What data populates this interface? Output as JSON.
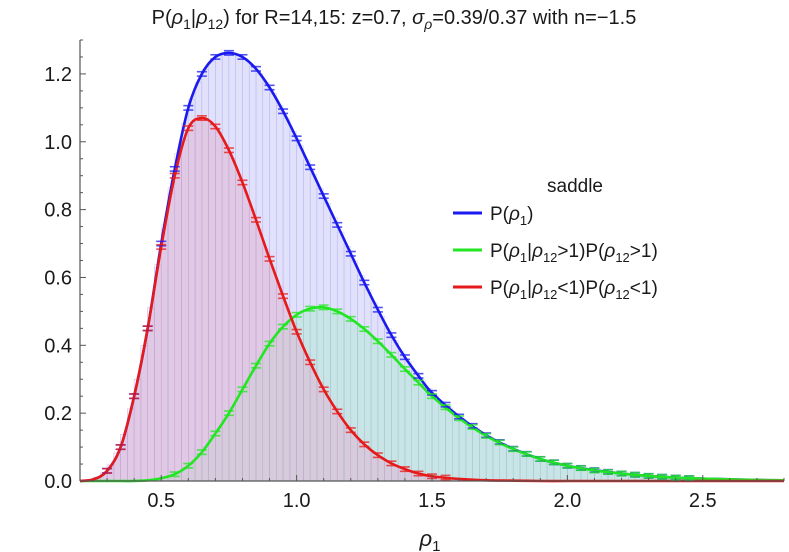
{
  "chart_data": {
    "type": "line",
    "title": "P(ρ1|ρ12) for R=14,15: z=0.7, σρ=0.39/0.37 with n=−1.5",
    "title_parts": {
      "p1": "P(",
      "rho": "ρ",
      "sub1": "1",
      "bar": "|",
      "sub12": "12",
      "rest": ") for R=14,15: z=0.7, ",
      "sigma": "σ",
      "sigma_sub": "ρ",
      "tail": "=0.39/0.37 with n=−1.5"
    },
    "xlabel": "ρ",
    "xlabel_sub": "1",
    "ylabel": "",
    "xlim": [
      0.2,
      2.8
    ],
    "ylim": [
      0.0,
      1.3
    ],
    "x_ticks": [
      0.5,
      1.0,
      1.5,
      2.0,
      2.5
    ],
    "x_tick_labels": [
      "0.5",
      "1.0",
      "1.5",
      "2.0",
      "2.5"
    ],
    "y_ticks": [
      0.0,
      0.2,
      0.4,
      0.6,
      0.8,
      1.0,
      1.2
    ],
    "y_tick_labels": [
      "0.0",
      "0.2",
      "0.4",
      "0.6",
      "0.8",
      "1.0",
      "1.2"
    ],
    "grid": false,
    "legend_title": "saddle",
    "legend_position": "center-right",
    "x": [
      0.2,
      0.25,
      0.3,
      0.35,
      0.4,
      0.45,
      0.5,
      0.55,
      0.6,
      0.65,
      0.7,
      0.75,
      0.8,
      0.85,
      0.9,
      0.95,
      1.0,
      1.05,
      1.1,
      1.15,
      1.2,
      1.25,
      1.3,
      1.35,
      1.4,
      1.45,
      1.5,
      1.6,
      1.7,
      1.8,
      1.9,
      2.0,
      2.1,
      2.2,
      2.3,
      2.4,
      2.5,
      2.6,
      2.7,
      2.8
    ],
    "series": [
      {
        "name": "P(ρ1)",
        "legend": {
          "pre": "P(",
          "rho": "ρ",
          "sub": "1",
          "post": ")"
        },
        "color": "#1a1af0",
        "fill": "#c8c8f7",
        "values": [
          0.0,
          0.005,
          0.03,
          0.1,
          0.25,
          0.45,
          0.7,
          0.92,
          1.1,
          1.2,
          1.25,
          1.262,
          1.25,
          1.215,
          1.16,
          1.09,
          1.01,
          0.925,
          0.84,
          0.755,
          0.67,
          0.585,
          0.505,
          0.43,
          0.365,
          0.31,
          0.26,
          0.19,
          0.135,
          0.095,
          0.065,
          0.045,
          0.032,
          0.022,
          0.015,
          0.01,
          0.007,
          0.005,
          0.003,
          0.002
        ]
      },
      {
        "name": "P(ρ1|ρ12>1)P(ρ12>1)",
        "legend": {
          "pre": "P(",
          "rho": "ρ",
          "sub": "1",
          "bar": "|",
          "rho2": "ρ",
          "sub2": "12",
          "post": ">1)P(",
          "rho3": "ρ",
          "sub3": "12",
          "post2": ">1)"
        },
        "color": "#22e622",
        "fill": "#b6e8d6",
        "values": [
          0.0,
          0.0,
          0.0,
          0.0,
          0.0,
          0.002,
          0.008,
          0.02,
          0.045,
          0.085,
          0.14,
          0.2,
          0.27,
          0.34,
          0.405,
          0.455,
          0.49,
          0.508,
          0.512,
          0.5,
          0.478,
          0.448,
          0.412,
          0.372,
          0.33,
          0.29,
          0.25,
          0.185,
          0.133,
          0.094,
          0.065,
          0.045,
          0.031,
          0.022,
          0.015,
          0.01,
          0.007,
          0.005,
          0.003,
          0.002
        ]
      },
      {
        "name": "P(ρ1|ρ12<1)P(ρ12<1)",
        "legend": {
          "pre": "P(",
          "rho": "ρ",
          "sub": "1",
          "bar": "|",
          "rho2": "ρ",
          "sub2": "12",
          "post": "<1)P(",
          "rho3": "ρ",
          "sub3": "12",
          "post2": "<1)"
        },
        "color": "#e61a1a",
        "fill": "#e0b6d4",
        "values": [
          0.0,
          0.005,
          0.03,
          0.1,
          0.25,
          0.45,
          0.69,
          0.9,
          1.04,
          1.07,
          1.045,
          0.975,
          0.88,
          0.77,
          0.655,
          0.545,
          0.44,
          0.35,
          0.27,
          0.205,
          0.15,
          0.108,
          0.076,
          0.052,
          0.035,
          0.022,
          0.014,
          0.006,
          0.002,
          0.001,
          0.0,
          0.0,
          0.0,
          0.0,
          0.0,
          0.0,
          0.0,
          0.0,
          0.0,
          0.0
        ]
      }
    ]
  }
}
